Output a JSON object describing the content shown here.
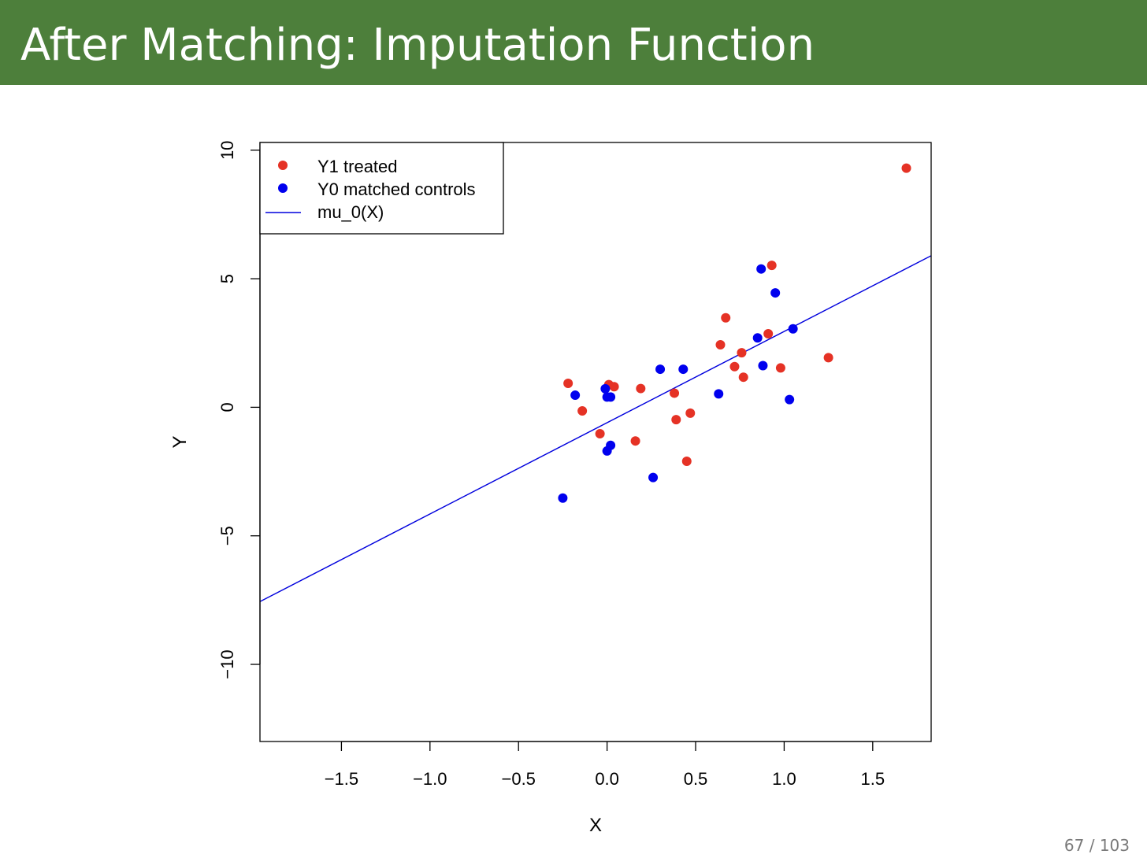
{
  "slide": {
    "title": "After Matching: Imputation Function",
    "page_number": "67 / 103"
  },
  "colors": {
    "title_bar": "#4d7f3b",
    "treated": "#e53225",
    "control": "#0000ee",
    "line": "#0000dd"
  },
  "chart_data": {
    "type": "scatter",
    "title": "",
    "xlabel": "X",
    "ylabel": "Y",
    "xlim": [
      -1.96,
      1.83
    ],
    "ylim": [
      -13.0,
      10.3
    ],
    "x_ticks": [
      -1.5,
      -1.0,
      -0.5,
      0.0,
      0.5,
      1.0,
      1.5
    ],
    "x_tick_labels": [
      "−1.5",
      "−1.0",
      "−0.5",
      "0.0",
      "0.5",
      "1.0",
      "1.5"
    ],
    "y_ticks": [
      10,
      5,
      0,
      -5,
      -10
    ],
    "y_tick_labels": [
      "10",
      "5",
      "0",
      "−5",
      "−10"
    ],
    "grid": false,
    "legend_position": "top-left",
    "series": [
      {
        "name": "Y1 treated",
        "kind": "points",
        "color": "#e53225",
        "points": [
          [
            -0.22,
            0.93
          ],
          [
            -0.14,
            -0.14
          ],
          [
            -0.04,
            -1.03
          ],
          [
            0.01,
            0.88
          ],
          [
            0.04,
            0.8
          ],
          [
            0.16,
            -1.31
          ],
          [
            0.19,
            0.73
          ],
          [
            0.38,
            0.55
          ],
          [
            0.39,
            -0.48
          ],
          [
            0.45,
            -2.1
          ],
          [
            0.47,
            -0.23
          ],
          [
            0.64,
            2.43
          ],
          [
            0.67,
            3.48
          ],
          [
            0.72,
            1.58
          ],
          [
            0.76,
            2.12
          ],
          [
            0.77,
            1.17
          ],
          [
            0.91,
            2.86
          ],
          [
            0.93,
            5.52
          ],
          [
            0.98,
            1.53
          ],
          [
            1.25,
            1.93
          ],
          [
            1.69,
            9.3
          ]
        ]
      },
      {
        "name": "Y0 matched controls",
        "kind": "points",
        "color": "#0000ee",
        "points": [
          [
            -0.25,
            -3.53
          ],
          [
            -0.18,
            0.47
          ],
          [
            -0.01,
            0.72
          ],
          [
            0.0,
            0.4
          ],
          [
            0.0,
            -1.7
          ],
          [
            0.02,
            0.4
          ],
          [
            0.02,
            -1.48
          ],
          [
            0.26,
            -2.73
          ],
          [
            0.3,
            1.48
          ],
          [
            0.43,
            1.48
          ],
          [
            0.63,
            0.52
          ],
          [
            0.85,
            2.7
          ],
          [
            0.87,
            5.38
          ],
          [
            0.88,
            1.62
          ],
          [
            0.95,
            4.45
          ],
          [
            1.03,
            0.3
          ],
          [
            1.05,
            3.05
          ]
        ]
      },
      {
        "name": "mu_0(X)",
        "kind": "line",
        "color": "#0000dd",
        "intercept": -0.6,
        "slope": 3.55
      }
    ]
  }
}
